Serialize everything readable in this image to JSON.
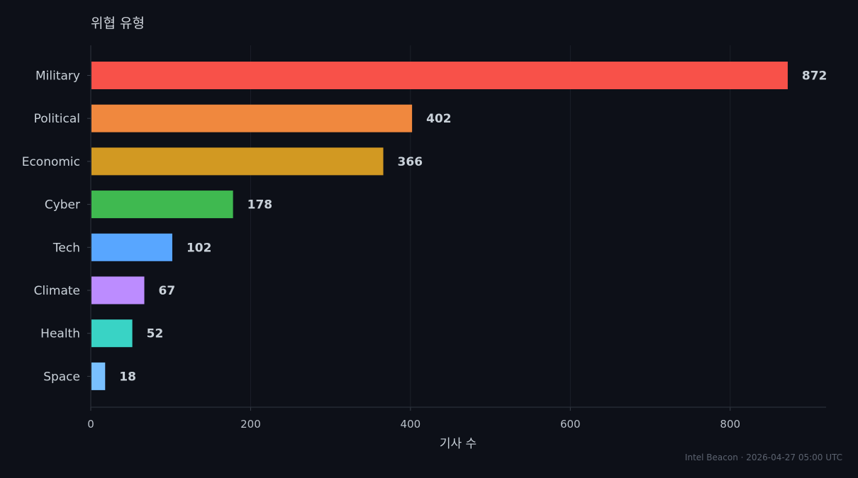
{
  "chart_data": {
    "type": "bar",
    "orientation": "horizontal",
    "title": "위협 유형",
    "xlabel": "기사 수",
    "ylabel": "",
    "categories": [
      "Military",
      "Political",
      "Economic",
      "Cyber",
      "Tech",
      "Climate",
      "Health",
      "Space"
    ],
    "values": [
      872,
      402,
      366,
      178,
      102,
      67,
      52,
      18
    ],
    "colors": [
      "#f85149",
      "#f0883e",
      "#d29922",
      "#3fb950",
      "#58a6ff",
      "#bc8cff",
      "#39d3c5",
      "#79c0ff"
    ],
    "xlim": [
      0,
      920
    ],
    "xticks": [
      0,
      200,
      400,
      600,
      800
    ],
    "grid": "vertical"
  },
  "footer": "Intel Beacon · 2026-04-27 05:00 UTC"
}
